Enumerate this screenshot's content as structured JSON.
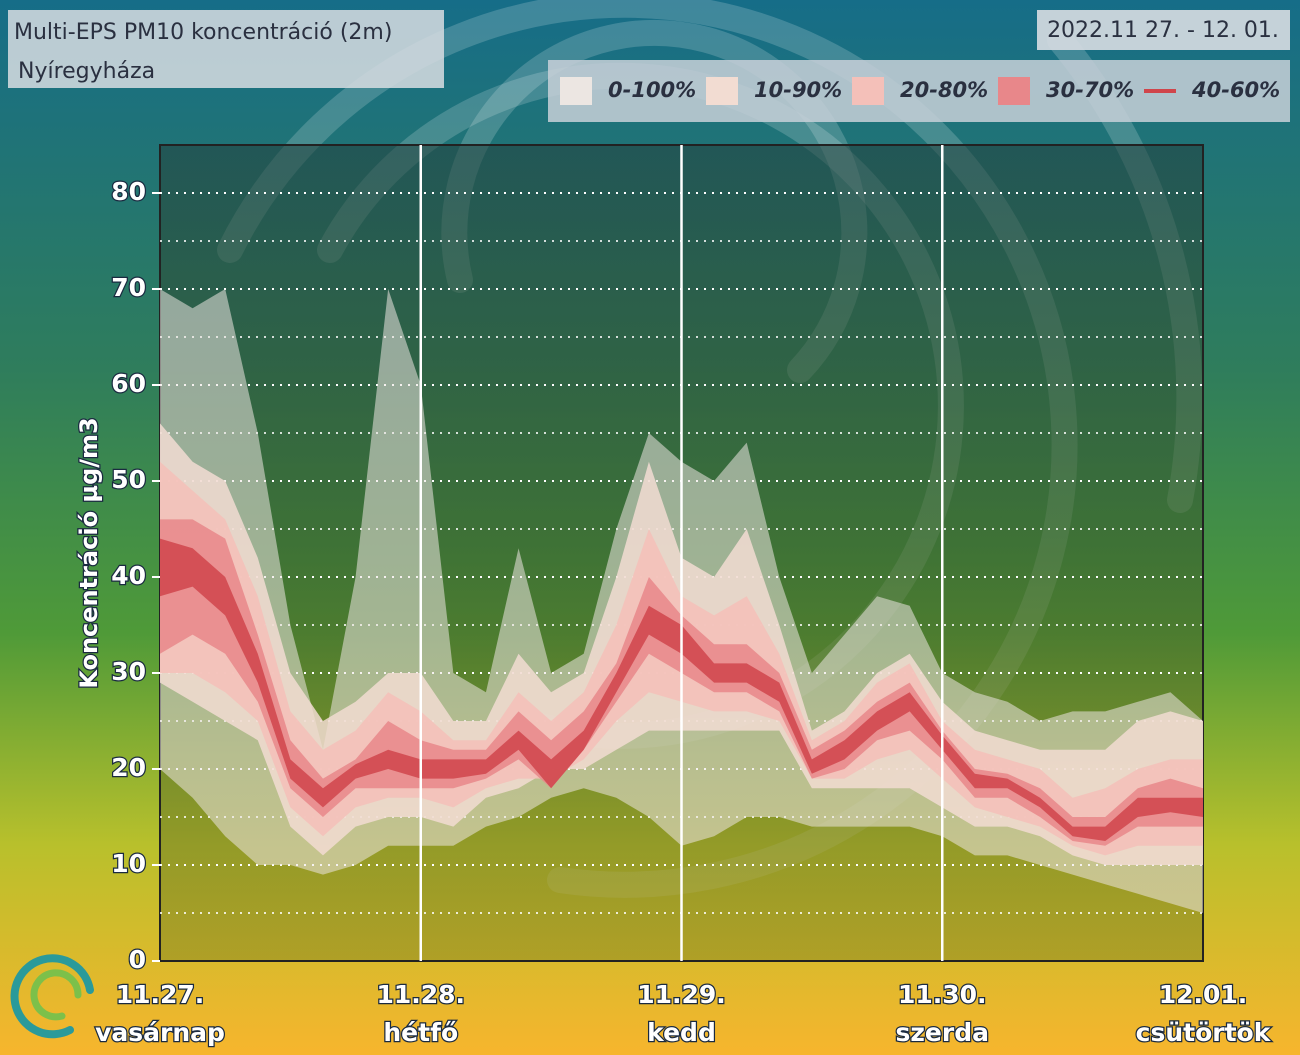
{
  "chart_data": {
    "type": "fan",
    "title": "Multi-EPS PM10 koncentráció (2m)",
    "subtitle": "Nyíregyháza",
    "date_range": "2022.11 27. - 12. 01.",
    "y_label": "Koncentráció µg/m3",
    "x": [
      0,
      3,
      6,
      9,
      12,
      15,
      18,
      21,
      24,
      27,
      30,
      33,
      36,
      39,
      42,
      45,
      48,
      51,
      54,
      57,
      60,
      63,
      66,
      69,
      72,
      75,
      78,
      81,
      84,
      87,
      90,
      93,
      96
    ],
    "xlim": [
      0,
      96
    ],
    "xticks": [
      {
        "value": 0,
        "label": "11.27."
      },
      {
        "value": 24,
        "label": "11.28."
      },
      {
        "value": 48,
        "label": "11.29."
      },
      {
        "value": 72,
        "label": "11.30."
      },
      {
        "value": 96,
        "label": "12.01."
      }
    ],
    "xtick_days": [
      "vasárnap",
      "hétfő",
      "kedd",
      "szerda",
      "csütörtök"
    ],
    "ylim": [
      0,
      85
    ],
    "yticks": [
      0,
      10,
      20,
      30,
      40,
      50,
      60,
      70,
      80
    ],
    "yminorticks": [
      5,
      15,
      25,
      35,
      45,
      55,
      65,
      75
    ],
    "grid": true,
    "series": [
      {
        "name": "0-100%",
        "color": "#ece6e2",
        "marker": "box",
        "lower": [
          20,
          17,
          13,
          10,
          10,
          9,
          10,
          12,
          12,
          12,
          14,
          15,
          17,
          18,
          17,
          15,
          12,
          13,
          15,
          15,
          14,
          14,
          14,
          14,
          13,
          11,
          11,
          10,
          9,
          8,
          7,
          6,
          5
        ],
        "upper": [
          70,
          68,
          70,
          55,
          35,
          22,
          40,
          70,
          60,
          30,
          28,
          43,
          30,
          32,
          45,
          55,
          52,
          50,
          54,
          40,
          30,
          34,
          38,
          37,
          30,
          28,
          27,
          25,
          26,
          26,
          27,
          28,
          25
        ]
      },
      {
        "name": "10-90%",
        "color": "#f2dcd2",
        "marker": "box",
        "lower": [
          29,
          27,
          25,
          23,
          14,
          11,
          14,
          15,
          15,
          14,
          17,
          18,
          20,
          20,
          22,
          24,
          24,
          24,
          24,
          24,
          18,
          18,
          18,
          18,
          16,
          14,
          14,
          13,
          11,
          10,
          10,
          10,
          10
        ],
        "upper": [
          56,
          52,
          50,
          42,
          30,
          25,
          27,
          30,
          30,
          25,
          25,
          32,
          28,
          30,
          40,
          52,
          42,
          40,
          45,
          35,
          24,
          26,
          30,
          32,
          27,
          24,
          23,
          22,
          22,
          22,
          25,
          26,
          25
        ]
      },
      {
        "name": "20-80%",
        "color": "#f4c0b9",
        "marker": "box",
        "lower": [
          30,
          30,
          28,
          25,
          16,
          13,
          16,
          17,
          17,
          16,
          18,
          19,
          19,
          21,
          25,
          28,
          27,
          26,
          26,
          25,
          19,
          19,
          21,
          22,
          19,
          16,
          15,
          14,
          12,
          11,
          12,
          12,
          12
        ],
        "upper": [
          52,
          49,
          46,
          38,
          26,
          22,
          24,
          28,
          26,
          23,
          23,
          28,
          25,
          28,
          35,
          45,
          38,
          36,
          38,
          32,
          23,
          25,
          29,
          31,
          25,
          22,
          21,
          20,
          17,
          18,
          20,
          21,
          21
        ]
      },
      {
        "name": "30-70%",
        "color": "#e8878a",
        "marker": "box",
        "lower": [
          32,
          34,
          32,
          27,
          18,
          15,
          18,
          18,
          18,
          18,
          19,
          21,
          18,
          22,
          27,
          32,
          30,
          28,
          28,
          26,
          19,
          20,
          23,
          24,
          21,
          17,
          17,
          15,
          12.5,
          12,
          14,
          14,
          14
        ],
        "upper": [
          46,
          46,
          44,
          34,
          23,
          19,
          21,
          25,
          23,
          22,
          22,
          26,
          23,
          26,
          31,
          40,
          36,
          33,
          33,
          30,
          22,
          24,
          27,
          29,
          24,
          20,
          19.5,
          18,
          15,
          15,
          18,
          19,
          18
        ]
      },
      {
        "name": "40-60%",
        "color": "#d0454b",
        "marker": "line",
        "lower": [
          38,
          39,
          36,
          29,
          19,
          16,
          19,
          20,
          19,
          19,
          19.5,
          22,
          18,
          22,
          28,
          34,
          32,
          29,
          29,
          27,
          19.5,
          21,
          24,
          26,
          22,
          18,
          18,
          16,
          13,
          12.5,
          15,
          15.5,
          15
        ],
        "upper": [
          44,
          43,
          40,
          32,
          21,
          18,
          20.5,
          22,
          21,
          21,
          21,
          24,
          21,
          24,
          30,
          37,
          35,
          31,
          31,
          29,
          21,
          23,
          26,
          28,
          23.5,
          19.5,
          19,
          17,
          14,
          14,
          17,
          17,
          17
        ]
      }
    ]
  }
}
